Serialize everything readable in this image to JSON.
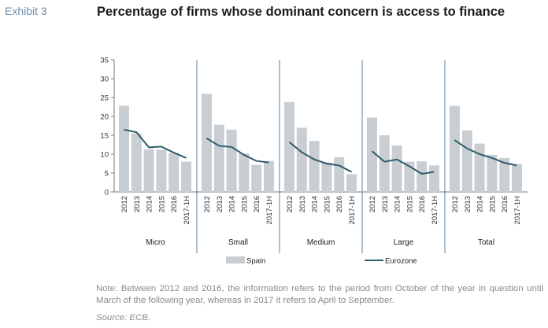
{
  "header": {
    "exhibit": "Exhibit 3",
    "title": "Percentage of firms whose dominant concern is access to finance"
  },
  "chart_data": {
    "type": "bar",
    "ylim": [
      0,
      35
    ],
    "yticks": [
      0,
      5,
      10,
      15,
      20,
      25,
      30,
      35
    ],
    "grid": false,
    "legend_position": "bottom",
    "categories": [
      "2012",
      "2013",
      "2014",
      "2015",
      "2016",
      "2017-1H"
    ],
    "groups": [
      {
        "name": "Micro",
        "series": [
          {
            "name": "Spain",
            "kind": "bar",
            "values": [
              22.8,
              15.5,
              11.3,
              11.2,
              10.3,
              8.0
            ]
          },
          {
            "name": "Eurozone",
            "kind": "line",
            "values": [
              16.5,
              15.8,
              11.8,
              12.0,
              10.4,
              9.0
            ]
          }
        ]
      },
      {
        "name": "Small",
        "series": [
          {
            "name": "Spain",
            "kind": "bar",
            "values": [
              26.0,
              17.8,
              16.5,
              10.2,
              7.2,
              8.2
            ]
          },
          {
            "name": "Eurozone",
            "kind": "line",
            "values": [
              14.2,
              12.2,
              11.9,
              9.8,
              8.2,
              7.8
            ]
          }
        ]
      },
      {
        "name": "Medium",
        "series": [
          {
            "name": "Spain",
            "kind": "bar",
            "values": [
              23.8,
              17.0,
              13.5,
              7.8,
              9.2,
              4.7
            ]
          },
          {
            "name": "Eurozone",
            "kind": "line",
            "values": [
              13.2,
              10.5,
              8.6,
              7.5,
              7.0,
              5.3
            ]
          }
        ]
      },
      {
        "name": "Large",
        "series": [
          {
            "name": "Spain",
            "kind": "bar",
            "values": [
              19.7,
              15.0,
              12.3,
              8.0,
              8.1,
              7.0
            ]
          },
          {
            "name": "Eurozone",
            "kind": "line",
            "values": [
              10.8,
              8.0,
              8.6,
              6.8,
              4.8,
              5.3
            ]
          }
        ]
      },
      {
        "name": "Total",
        "series": [
          {
            "name": "Spain",
            "kind": "bar",
            "values": [
              22.8,
              16.3,
              12.8,
              9.8,
              9.0,
              7.4
            ]
          },
          {
            "name": "Eurozone",
            "kind": "line",
            "values": [
              13.7,
              11.5,
              10.0,
              9.0,
              7.7,
              7.0
            ]
          }
        ]
      }
    ],
    "legend": [
      {
        "name": "Spain",
        "kind": "bar",
        "color": "#c9ced2"
      },
      {
        "name": "Eurozone",
        "kind": "line",
        "color": "#2f5b6e"
      }
    ],
    "colors": {
      "bar": "#c9ced2",
      "line": "#2f5b6e",
      "separator": "#5a86a4",
      "axis": "#7a7a7a"
    }
  },
  "note": "Note: Between 2012 and 2016, the information refers to the period from October of the year in question until March of the following year, whereas in 2017 it refers to April to September.",
  "source": "Source: ECB."
}
